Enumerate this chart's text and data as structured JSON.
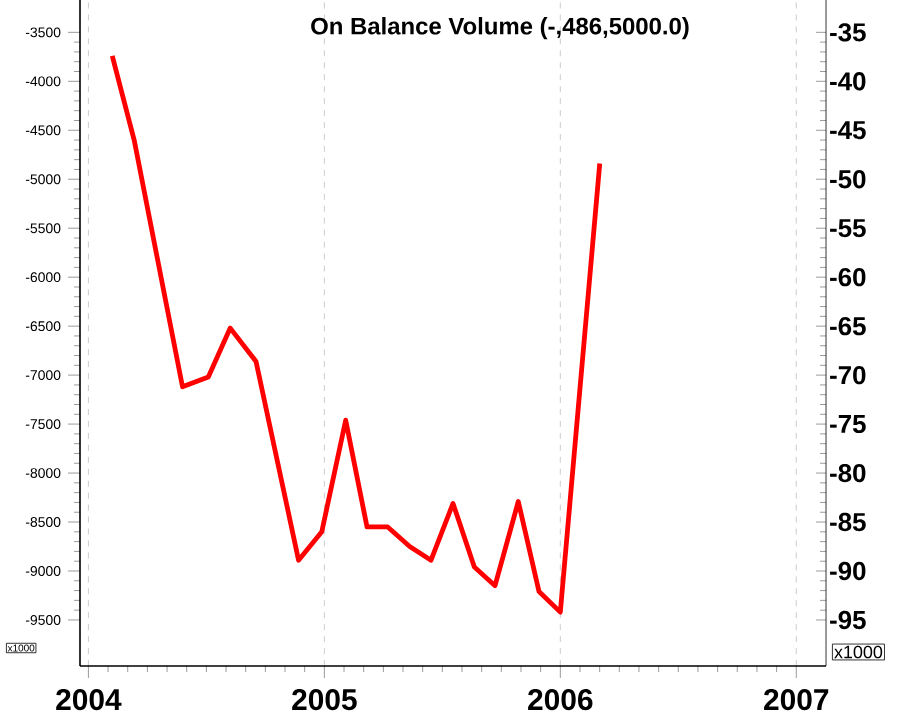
{
  "chart_data": {
    "type": "line",
    "title": "On Balance Volume (-,486,5000.0)",
    "x": [
      "2004-02-07",
      "2004-03-12",
      "2004-05-26",
      "2004-07-05",
      "2004-08-08",
      "2004-09-17",
      "2004-11-22",
      "2004-12-28",
      "2005-02-03",
      "2005-03-08",
      "2005-04-09",
      "2005-05-13",
      "2005-06-15",
      "2005-07-19",
      "2005-08-21",
      "2005-09-22",
      "2005-10-28",
      "2005-11-29",
      "2006-01-01",
      "2006-03-03"
    ],
    "series": [
      {
        "color": "#ff0000",
        "values": [
          -3740,
          -4600,
          -7120,
          -7020,
          -6520,
          -6860,
          -8890,
          -8600,
          -7460,
          -8550,
          -8550,
          -8750,
          -8890,
          -8310,
          -8960,
          -9150,
          -8290,
          -9210,
          -9420,
          -4840
        ]
      }
    ],
    "xlim": [
      "2003-12-19",
      "2007-02-16"
    ],
    "xticks": [
      "2004",
      "2005",
      "2006",
      "2007"
    ],
    "ylim": [
      -9970,
      -3170
    ],
    "yticks": [
      -3500,
      -4000,
      -4500,
      -5000,
      -5500,
      -6000,
      -6500,
      -7000,
      -7500,
      -8000,
      -8500,
      -9000,
      -9500
    ],
    "y2lim": [
      -99.7,
      -31.7
    ],
    "y2ticks": [
      -35,
      -40,
      -45,
      -50,
      -55,
      -60,
      -65,
      -70,
      -75,
      -80,
      -85,
      -90,
      -95
    ],
    "annotations": [
      "x1000",
      "x1000"
    ],
    "grid": "x",
    "marker": "none",
    "line_style": "solid"
  }
}
